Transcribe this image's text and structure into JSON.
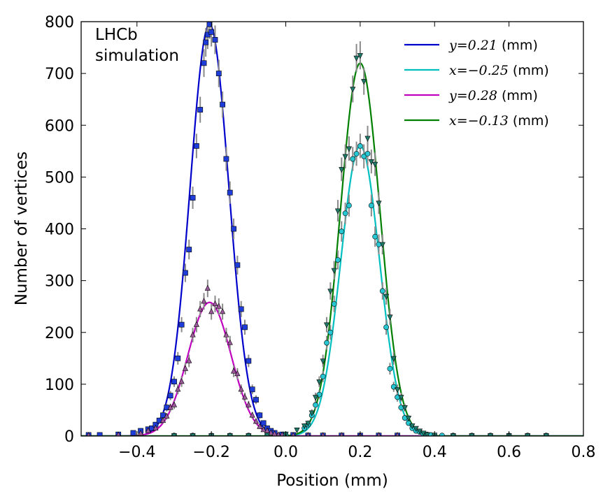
{
  "chart_data": {
    "type": "line",
    "title": "",
    "xlabel": "Position (mm)",
    "ylabel": "Number of vertices",
    "xlim": [
      -0.55,
      0.8
    ],
    "ylim": [
      0,
      800
    ],
    "xticks": [
      -0.4,
      -0.2,
      0.0,
      0.2,
      0.4,
      0.6,
      0.8
    ],
    "xtick_labels": [
      "−0.4",
      "−0.2",
      "0.0",
      "0.2",
      "0.4",
      "0.6",
      "0.8"
    ],
    "yticks": [
      0,
      100,
      200,
      300,
      400,
      500,
      600,
      700,
      800
    ],
    "ytick_labels": [
      "0",
      "100",
      "200",
      "300",
      "400",
      "500",
      "600",
      "700",
      "800"
    ],
    "annotation": [
      "LHCb",
      "simulation"
    ],
    "legend_position": "top-right",
    "series": [
      {
        "name": "y=0.21 (mm)",
        "legend_math": "y=0.21",
        "legend_unit": " (mm)",
        "color": "#0000cc",
        "marker": "square",
        "marker_color": "#1e3cd8",
        "gaussian": {
          "amplitude": 795,
          "mean": -0.205,
          "sigma": 0.052
        },
        "points": {
          "x": [
            -0.53,
            -0.5,
            -0.45,
            -0.41,
            -0.39,
            -0.37,
            -0.36,
            -0.35,
            -0.34,
            -0.33,
            -0.32,
            -0.31,
            -0.3,
            -0.29,
            -0.28,
            -0.27,
            -0.26,
            -0.25,
            -0.24,
            -0.23,
            -0.22,
            -0.215,
            -0.21,
            -0.205,
            -0.2,
            -0.19,
            -0.18,
            -0.17,
            -0.16,
            -0.15,
            -0.14,
            -0.13,
            -0.12,
            -0.11,
            -0.1,
            -0.09,
            -0.08,
            -0.07,
            -0.06,
            -0.05,
            -0.04,
            -0.03,
            -0.01,
            0.02,
            0.06,
            0.1,
            0.15,
            0.2,
            0.25,
            0.3
          ],
          "y": [
            2,
            2,
            3,
            6,
            10,
            13,
            15,
            22,
            30,
            40,
            55,
            78,
            105,
            150,
            215,
            315,
            360,
            460,
            560,
            630,
            720,
            760,
            775,
            795,
            780,
            765,
            700,
            640,
            535,
            470,
            400,
            330,
            245,
            210,
            145,
            90,
            70,
            40,
            25,
            15,
            10,
            6,
            3,
            2,
            1,
            1,
            1,
            1,
            1,
            1
          ]
        }
      },
      {
        "name": "x=−0.25 (mm)",
        "legend_math": "x=−0.25",
        "legend_unit": " (mm)",
        "color": "#00bfbf",
        "marker": "circle",
        "marker_color": "#26c6d2",
        "gaussian": {
          "amplitude": 560,
          "mean": 0.2,
          "sigma": 0.052
        },
        "points": {
          "x": [
            -0.3,
            -0.25,
            -0.2,
            -0.15,
            -0.1,
            -0.05,
            0.0,
            0.05,
            0.06,
            0.07,
            0.08,
            0.09,
            0.1,
            0.11,
            0.12,
            0.13,
            0.14,
            0.15,
            0.16,
            0.17,
            0.18,
            0.19,
            0.2,
            0.21,
            0.22,
            0.23,
            0.24,
            0.25,
            0.26,
            0.27,
            0.28,
            0.29,
            0.3,
            0.31,
            0.32,
            0.33,
            0.34,
            0.35,
            0.36,
            0.37,
            0.38,
            0.39,
            0.4,
            0.42,
            0.45,
            0.5,
            0.55,
            0.6,
            0.65,
            0.7
          ],
          "y": [
            1,
            1,
            1,
            1,
            1,
            1,
            2,
            15,
            22,
            40,
            60,
            80,
            115,
            180,
            200,
            255,
            340,
            395,
            430,
            445,
            535,
            545,
            560,
            540,
            545,
            445,
            385,
            370,
            280,
            210,
            130,
            95,
            75,
            55,
            35,
            25,
            15,
            10,
            8,
            4,
            3,
            2,
            1,
            1,
            1,
            1,
            1,
            1,
            1,
            1
          ]
        }
      },
      {
        "name": "y=0.28 (mm)",
        "legend_math": "y=0.28",
        "legend_unit": " (mm)",
        "color": "#bf00bf",
        "marker": "triangle-up",
        "marker_color": "#9c5a9c",
        "gaussian": {
          "amplitude": 258,
          "mean": -0.205,
          "sigma": 0.058
        },
        "points": {
          "x": [
            -0.53,
            -0.45,
            -0.39,
            -0.37,
            -0.35,
            -0.33,
            -0.32,
            -0.31,
            -0.3,
            -0.29,
            -0.28,
            -0.27,
            -0.26,
            -0.25,
            -0.24,
            -0.23,
            -0.22,
            -0.21,
            -0.2,
            -0.19,
            -0.18,
            -0.17,
            -0.16,
            -0.15,
            -0.14,
            -0.13,
            -0.12,
            -0.11,
            -0.1,
            -0.09,
            -0.08,
            -0.07,
            -0.06,
            -0.05,
            -0.04,
            -0.03,
            -0.02,
            -0.01,
            0.02,
            0.06,
            0.1,
            0.15,
            0.2,
            0.25,
            0.3
          ],
          "y": [
            1,
            2,
            5,
            10,
            15,
            30,
            38,
            55,
            60,
            90,
            105,
            130,
            145,
            195,
            215,
            245,
            260,
            285,
            240,
            255,
            250,
            240,
            195,
            180,
            125,
            120,
            90,
            75,
            60,
            40,
            28,
            18,
            12,
            10,
            6,
            4,
            2,
            2,
            1,
            1,
            1,
            1,
            1,
            1,
            1
          ]
        }
      },
      {
        "name": "x=−0.13 (mm)",
        "legend_math": "x=−0.13",
        "legend_unit": " (mm)",
        "color": "#007f00",
        "marker": "triangle-down",
        "marker_color": "#1f7a6a",
        "gaussian": {
          "amplitude": 720,
          "mean": 0.2,
          "sigma": 0.053
        },
        "points": {
          "x": [
            -0.3,
            -0.25,
            -0.2,
            -0.15,
            -0.1,
            -0.05,
            0.0,
            0.03,
            0.05,
            0.06,
            0.07,
            0.08,
            0.09,
            0.1,
            0.11,
            0.12,
            0.13,
            0.14,
            0.15,
            0.16,
            0.17,
            0.18,
            0.19,
            0.2,
            0.21,
            0.22,
            0.23,
            0.24,
            0.25,
            0.26,
            0.27,
            0.28,
            0.29,
            0.3,
            0.31,
            0.32,
            0.33,
            0.34,
            0.35,
            0.36,
            0.37,
            0.38,
            0.4,
            0.45,
            0.5,
            0.55,
            0.6,
            0.65,
            0.7
          ],
          "y": [
            1,
            1,
            1,
            1,
            1,
            2,
            4,
            12,
            20,
            25,
            45,
            75,
            105,
            145,
            215,
            280,
            320,
            435,
            515,
            540,
            555,
            670,
            730,
            735,
            685,
            575,
            530,
            525,
            450,
            370,
            270,
            230,
            150,
            90,
            75,
            55,
            35,
            20,
            15,
            10,
            6,
            3,
            2,
            1,
            1,
            1,
            1,
            1,
            1
          ]
        }
      }
    ]
  }
}
